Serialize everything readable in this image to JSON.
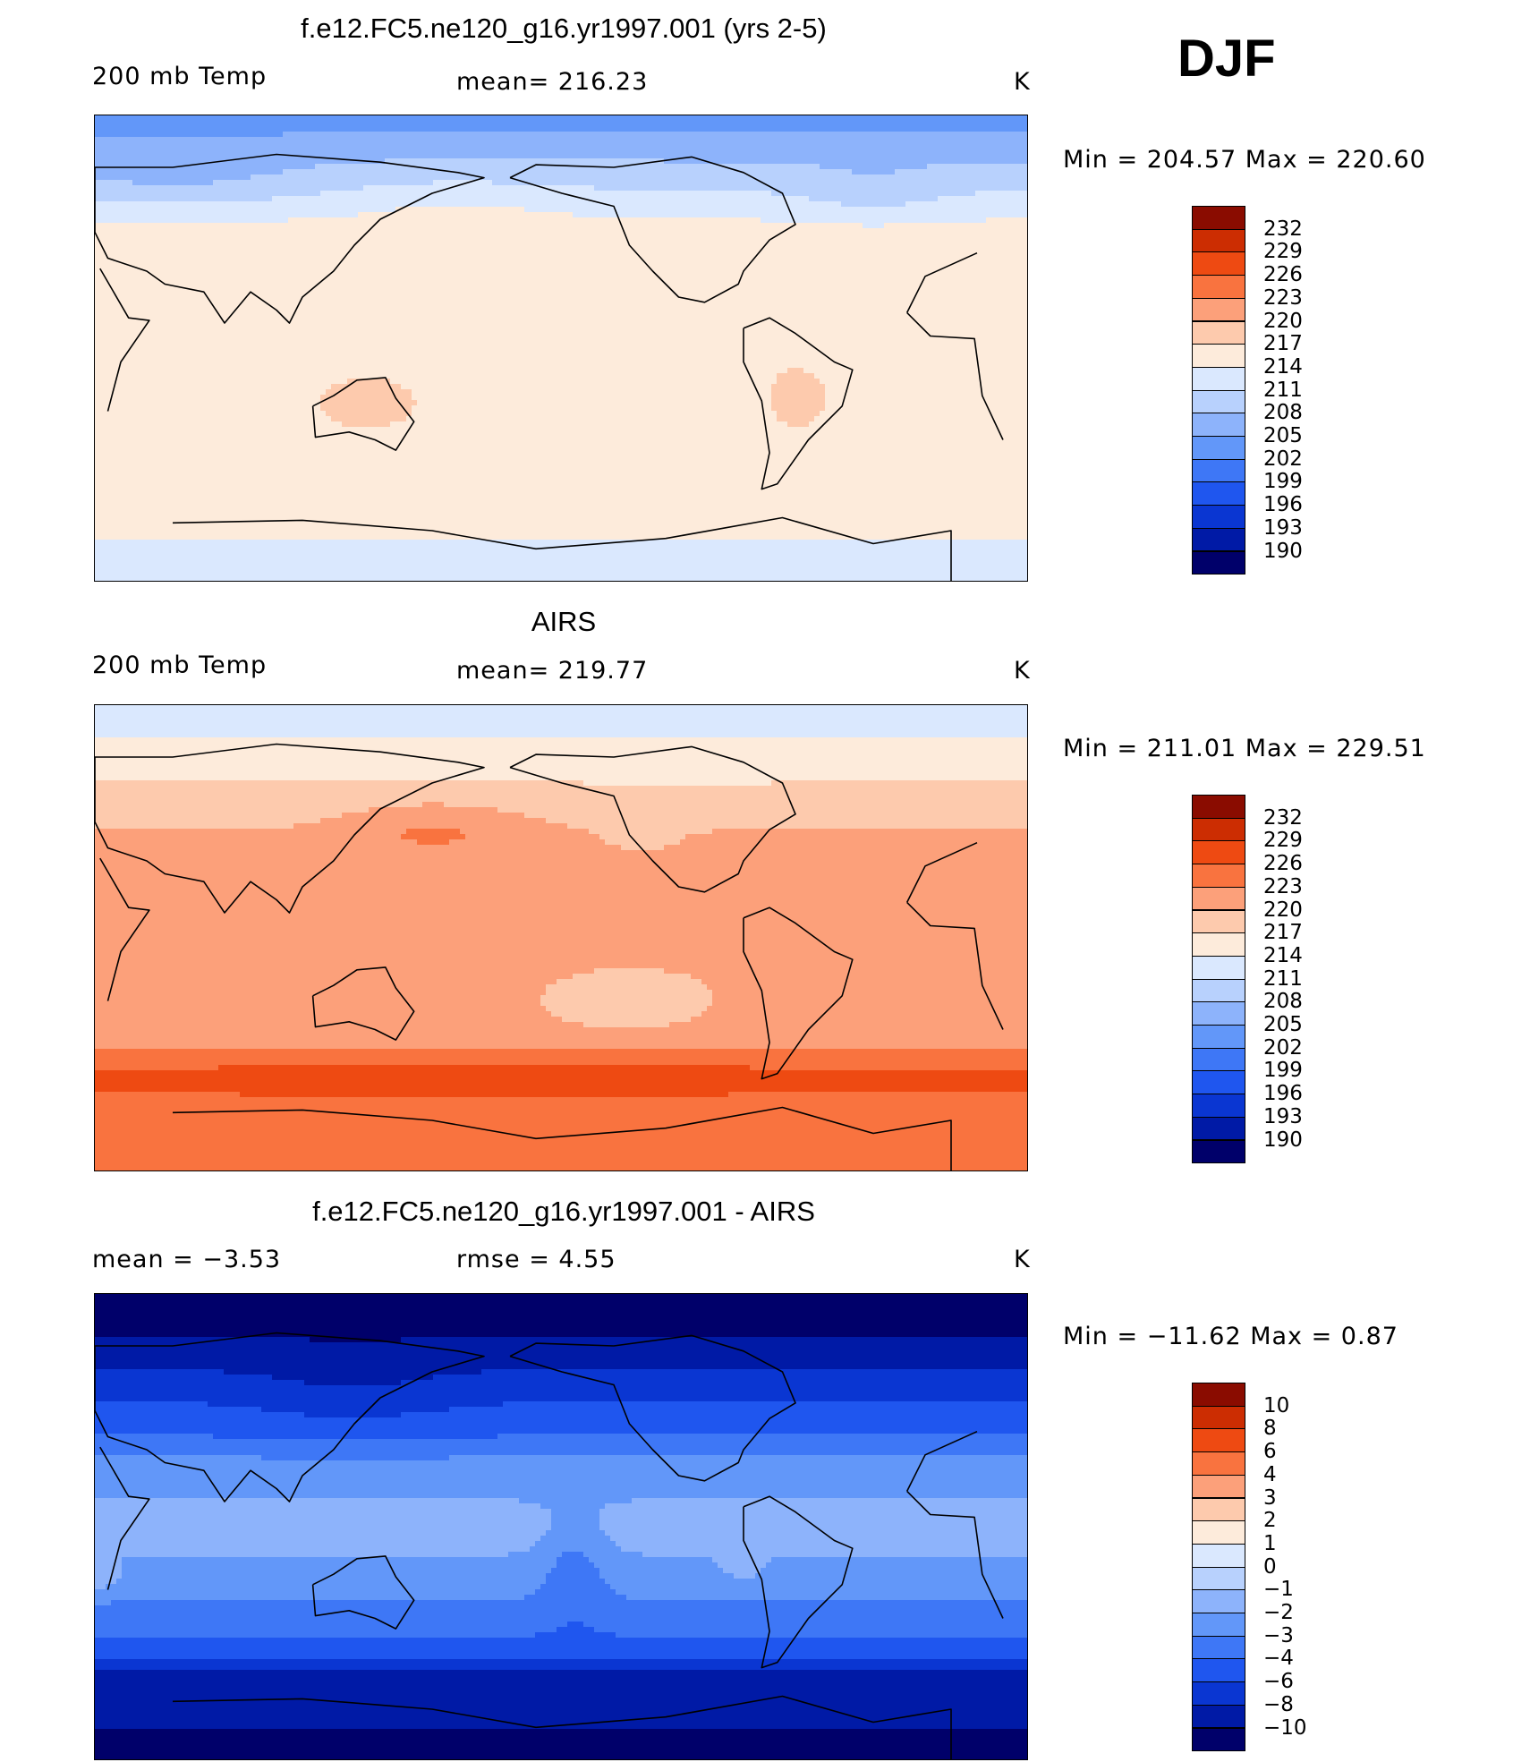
{
  "season": "DJF",
  "panels": [
    {
      "id": "model",
      "title": "f.e12.FC5.ne120_g16.yr1997.001 (yrs 2-5)",
      "left_label": "200 mb Temp",
      "center_label": "mean=  216.23",
      "units": "K",
      "minmax": "Min  =  204.57  Max  =  220.60",
      "colorbar_ticks": [
        "232",
        "229",
        "226",
        "223",
        "220",
        "217",
        "214",
        "211",
        "208",
        "205",
        "202",
        "199",
        "196",
        "193",
        "190"
      ],
      "field": "model"
    },
    {
      "id": "obs",
      "title": "AIRS",
      "left_label": "200 mb Temp",
      "center_label": "mean=  219.77",
      "units": "K",
      "minmax": "Min  =  211.01  Max  =  229.51",
      "colorbar_ticks": [
        "232",
        "229",
        "226",
        "223",
        "220",
        "217",
        "214",
        "211",
        "208",
        "205",
        "202",
        "199",
        "196",
        "193",
        "190"
      ],
      "field": "obs"
    },
    {
      "id": "diff",
      "title": "f.e12.FC5.ne120_g16.yr1997.001 - AIRS",
      "left_label": "mean  =    −3.53",
      "center_label": "rmse  =     4.55",
      "units": "K",
      "minmax": "Min  =  −11.62  Max  =      0.87",
      "colorbar_ticks": [
        "10",
        "8",
        "6",
        "4",
        "3",
        "2",
        "1",
        "0",
        "−1",
        "−2",
        "−3",
        "−4",
        "−6",
        "−8",
        "−10"
      ],
      "field": "diff"
    }
  ],
  "palette": [
    "#00006a",
    "#001aa6",
    "#0a36d2",
    "#1f56ef",
    "#3e77f6",
    "#6297f9",
    "#8db3fb",
    "#b8d1fd",
    "#dae8fe",
    "#fdebdb",
    "#fdcaad",
    "#fca07a",
    "#f9733f",
    "#ee4a12",
    "#cc2d02",
    "#8a0c00"
  ]
}
